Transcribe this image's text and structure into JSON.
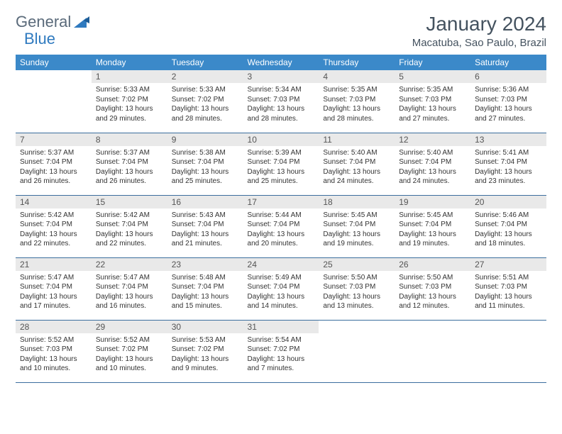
{
  "brand": {
    "part1": "General",
    "part2": "Blue"
  },
  "title": "January 2024",
  "location": "Macatuba, Sao Paulo, Brazil",
  "colors": {
    "header_bg": "#3b89c9",
    "header_text": "#ffffff",
    "daynum_bg": "#e9e9e9",
    "border": "#3b6e9e",
    "title_color": "#44525f"
  },
  "day_headers": [
    "Sunday",
    "Monday",
    "Tuesday",
    "Wednesday",
    "Thursday",
    "Friday",
    "Saturday"
  ],
  "weeks": [
    [
      {
        "n": "",
        "lines": []
      },
      {
        "n": "1",
        "lines": [
          "Sunrise: 5:33 AM",
          "Sunset: 7:02 PM",
          "Daylight: 13 hours and 29 minutes."
        ]
      },
      {
        "n": "2",
        "lines": [
          "Sunrise: 5:33 AM",
          "Sunset: 7:02 PM",
          "Daylight: 13 hours and 28 minutes."
        ]
      },
      {
        "n": "3",
        "lines": [
          "Sunrise: 5:34 AM",
          "Sunset: 7:03 PM",
          "Daylight: 13 hours and 28 minutes."
        ]
      },
      {
        "n": "4",
        "lines": [
          "Sunrise: 5:35 AM",
          "Sunset: 7:03 PM",
          "Daylight: 13 hours and 28 minutes."
        ]
      },
      {
        "n": "5",
        "lines": [
          "Sunrise: 5:35 AM",
          "Sunset: 7:03 PM",
          "Daylight: 13 hours and 27 minutes."
        ]
      },
      {
        "n": "6",
        "lines": [
          "Sunrise: 5:36 AM",
          "Sunset: 7:03 PM",
          "Daylight: 13 hours and 27 minutes."
        ]
      }
    ],
    [
      {
        "n": "7",
        "lines": [
          "Sunrise: 5:37 AM",
          "Sunset: 7:04 PM",
          "Daylight: 13 hours and 26 minutes."
        ]
      },
      {
        "n": "8",
        "lines": [
          "Sunrise: 5:37 AM",
          "Sunset: 7:04 PM",
          "Daylight: 13 hours and 26 minutes."
        ]
      },
      {
        "n": "9",
        "lines": [
          "Sunrise: 5:38 AM",
          "Sunset: 7:04 PM",
          "Daylight: 13 hours and 25 minutes."
        ]
      },
      {
        "n": "10",
        "lines": [
          "Sunrise: 5:39 AM",
          "Sunset: 7:04 PM",
          "Daylight: 13 hours and 25 minutes."
        ]
      },
      {
        "n": "11",
        "lines": [
          "Sunrise: 5:40 AM",
          "Sunset: 7:04 PM",
          "Daylight: 13 hours and 24 minutes."
        ]
      },
      {
        "n": "12",
        "lines": [
          "Sunrise: 5:40 AM",
          "Sunset: 7:04 PM",
          "Daylight: 13 hours and 24 minutes."
        ]
      },
      {
        "n": "13",
        "lines": [
          "Sunrise: 5:41 AM",
          "Sunset: 7:04 PM",
          "Daylight: 13 hours and 23 minutes."
        ]
      }
    ],
    [
      {
        "n": "14",
        "lines": [
          "Sunrise: 5:42 AM",
          "Sunset: 7:04 PM",
          "Daylight: 13 hours and 22 minutes."
        ]
      },
      {
        "n": "15",
        "lines": [
          "Sunrise: 5:42 AM",
          "Sunset: 7:04 PM",
          "Daylight: 13 hours and 22 minutes."
        ]
      },
      {
        "n": "16",
        "lines": [
          "Sunrise: 5:43 AM",
          "Sunset: 7:04 PM",
          "Daylight: 13 hours and 21 minutes."
        ]
      },
      {
        "n": "17",
        "lines": [
          "Sunrise: 5:44 AM",
          "Sunset: 7:04 PM",
          "Daylight: 13 hours and 20 minutes."
        ]
      },
      {
        "n": "18",
        "lines": [
          "Sunrise: 5:45 AM",
          "Sunset: 7:04 PM",
          "Daylight: 13 hours and 19 minutes."
        ]
      },
      {
        "n": "19",
        "lines": [
          "Sunrise: 5:45 AM",
          "Sunset: 7:04 PM",
          "Daylight: 13 hours and 19 minutes."
        ]
      },
      {
        "n": "20",
        "lines": [
          "Sunrise: 5:46 AM",
          "Sunset: 7:04 PM",
          "Daylight: 13 hours and 18 minutes."
        ]
      }
    ],
    [
      {
        "n": "21",
        "lines": [
          "Sunrise: 5:47 AM",
          "Sunset: 7:04 PM",
          "Daylight: 13 hours and 17 minutes."
        ]
      },
      {
        "n": "22",
        "lines": [
          "Sunrise: 5:47 AM",
          "Sunset: 7:04 PM",
          "Daylight: 13 hours and 16 minutes."
        ]
      },
      {
        "n": "23",
        "lines": [
          "Sunrise: 5:48 AM",
          "Sunset: 7:04 PM",
          "Daylight: 13 hours and 15 minutes."
        ]
      },
      {
        "n": "24",
        "lines": [
          "Sunrise: 5:49 AM",
          "Sunset: 7:04 PM",
          "Daylight: 13 hours and 14 minutes."
        ]
      },
      {
        "n": "25",
        "lines": [
          "Sunrise: 5:50 AM",
          "Sunset: 7:03 PM",
          "Daylight: 13 hours and 13 minutes."
        ]
      },
      {
        "n": "26",
        "lines": [
          "Sunrise: 5:50 AM",
          "Sunset: 7:03 PM",
          "Daylight: 13 hours and 12 minutes."
        ]
      },
      {
        "n": "27",
        "lines": [
          "Sunrise: 5:51 AM",
          "Sunset: 7:03 PM",
          "Daylight: 13 hours and 11 minutes."
        ]
      }
    ],
    [
      {
        "n": "28",
        "lines": [
          "Sunrise: 5:52 AM",
          "Sunset: 7:03 PM",
          "Daylight: 13 hours and 10 minutes."
        ]
      },
      {
        "n": "29",
        "lines": [
          "Sunrise: 5:52 AM",
          "Sunset: 7:02 PM",
          "Daylight: 13 hours and 10 minutes."
        ]
      },
      {
        "n": "30",
        "lines": [
          "Sunrise: 5:53 AM",
          "Sunset: 7:02 PM",
          "Daylight: 13 hours and 9 minutes."
        ]
      },
      {
        "n": "31",
        "lines": [
          "Sunrise: 5:54 AM",
          "Sunset: 7:02 PM",
          "Daylight: 13 hours and 7 minutes."
        ]
      },
      {
        "n": "",
        "lines": []
      },
      {
        "n": "",
        "lines": []
      },
      {
        "n": "",
        "lines": []
      }
    ]
  ]
}
